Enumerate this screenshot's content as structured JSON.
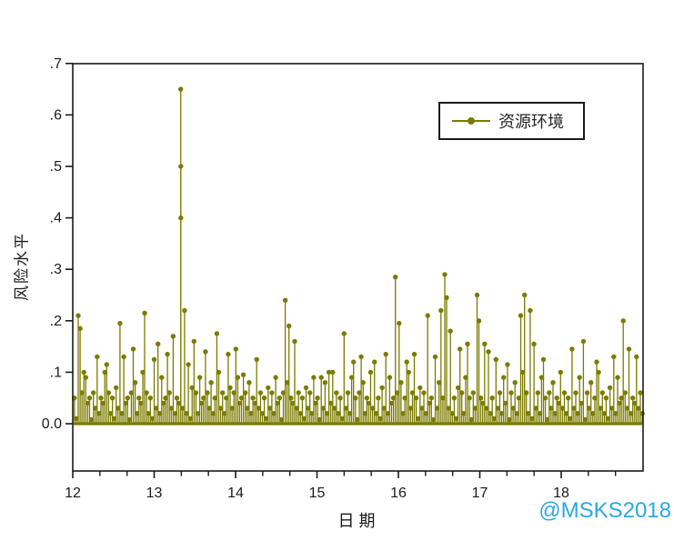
{
  "colors": {
    "series": "#7b7b00",
    "axis": "#1a1a1a",
    "watermark": "#29a9e1",
    "background": "#ffffff"
  },
  "axes_titles": {
    "y": "风险水平",
    "x": "日 期"
  },
  "legend": {
    "label": "资源环境"
  },
  "watermark": {
    "text": "@MSKS2018"
  },
  "chart_data": {
    "type": "scatter",
    "style": "stem-with-markers",
    "title": "",
    "xlabel": "日 期",
    "ylabel": "风险水平",
    "grid": false,
    "legend": {
      "entries": [
        "资源环境"
      ],
      "position": "top-right-inside"
    },
    "xlim": [
      12,
      19
    ],
    "ylim": [
      -0.09,
      0.7
    ],
    "x_ticks": [
      12,
      13,
      14,
      15,
      16,
      17,
      18
    ],
    "x_minor_interval": 0.333,
    "y_ticks": [
      0,
      0.1,
      0.2,
      0.3,
      0.4,
      0.5,
      0.6,
      0.7
    ],
    "y_tick_labels": [
      "0.0",
      ".1",
      ".2",
      ".3",
      ".4",
      ".5",
      ".6",
      ".7"
    ],
    "baseline_value": 0,
    "series": [
      {
        "name": "资源环境",
        "x_start": 12.02,
        "x_step": 0.02333,
        "values": [
          0.05,
          0.01,
          0.21,
          0.185,
          0.06,
          0.1,
          0.09,
          0.04,
          0.05,
          0.008,
          0.06,
          0.03,
          0.13,
          0.02,
          0.05,
          0.04,
          0.1,
          0.115,
          0.06,
          0.02,
          0.05,
          0.01,
          0.07,
          0.03,
          0.195,
          0.02,
          0.13,
          0.04,
          0.05,
          0.008,
          0.06,
          0.145,
          0.08,
          0.02,
          0.05,
          0.04,
          0.1,
          0.215,
          0.06,
          0.02,
          0.05,
          0.01,
          0.125,
          0.03,
          0.155,
          0.02,
          0.09,
          0.04,
          0.05,
          0.135,
          0.06,
          0.03,
          0.17,
          0.02,
          0.05,
          0.04,
          0.65,
          0.03,
          0.22,
          0.02,
          0.115,
          0.01,
          0.07,
          0.16,
          0.06,
          0.02,
          0.09,
          0.04,
          0.05,
          0.14,
          0.06,
          0.03,
          0.08,
          0.02,
          0.05,
          0.175,
          0.1,
          0.03,
          0.06,
          0.02,
          0.05,
          0.135,
          0.07,
          0.03,
          0.06,
          0.145,
          0.09,
          0.04,
          0.05,
          0.095,
          0.06,
          0.03,
          0.08,
          0.02,
          0.05,
          0.04,
          0.125,
          0.03,
          0.06,
          0.02,
          0.05,
          0.01,
          0.07,
          0.03,
          0.06,
          0.02,
          0.09,
          0.04,
          0.05,
          0.008,
          0.06,
          0.24,
          0.08,
          0.19,
          0.05,
          0.04,
          0.16,
          0.03,
          0.06,
          0.02,
          0.05,
          0.01,
          0.07,
          0.03,
          0.06,
          0.02,
          0.09,
          0.04,
          0.05,
          0.008,
          0.09,
          0.03,
          0.08,
          0.02,
          0.1,
          0.04,
          0.1,
          0.03,
          0.06,
          0.02,
          0.05,
          0.01,
          0.175,
          0.03,
          0.06,
          0.02,
          0.09,
          0.12,
          0.05,
          0.008,
          0.06,
          0.13,
          0.08,
          0.02,
          0.05,
          0.04,
          0.1,
          0.03,
          0.12,
          0.02,
          0.05,
          0.01,
          0.07,
          0.03,
          0.135,
          0.02,
          0.09,
          0.04,
          0.05,
          0.285,
          0.06,
          0.195,
          0.08,
          0.02,
          0.05,
          0.12,
          0.1,
          0.03,
          0.06,
          0.135,
          0.05,
          0.01,
          0.07,
          0.03,
          0.06,
          0.02,
          0.21,
          0.04,
          0.05,
          0.008,
          0.13,
          0.03,
          0.08,
          0.22,
          0.05,
          0.29,
          0.245,
          0.03,
          0.18,
          0.02,
          0.05,
          0.01,
          0.07,
          0.145,
          0.06,
          0.02,
          0.09,
          0.155,
          0.05,
          0.008,
          0.06,
          0.03,
          0.25,
          0.2,
          0.05,
          0.04,
          0.155,
          0.03,
          0.14,
          0.02,
          0.05,
          0.01,
          0.125,
          0.03,
          0.06,
          0.02,
          0.09,
          0.04,
          0.115,
          0.008,
          0.06,
          0.03,
          0.08,
          0.02,
          0.05,
          0.21,
          0.1,
          0.25,
          0.06,
          0.02,
          0.22,
          0.01,
          0.155,
          0.03,
          0.06,
          0.02,
          0.09,
          0.125,
          0.05,
          0.008,
          0.06,
          0.03,
          0.08,
          0.02,
          0.05,
          0.04,
          0.1,
          0.03,
          0.06,
          0.02,
          0.05,
          0.01,
          0.145,
          0.03,
          0.06,
          0.02,
          0.09,
          0.04,
          0.16,
          0.008,
          0.06,
          0.03,
          0.08,
          0.02,
          0.05,
          0.12,
          0.1,
          0.03,
          0.06,
          0.02,
          0.05,
          0.01,
          0.07,
          0.03,
          0.13,
          0.02,
          0.09,
          0.04,
          0.05,
          0.2,
          0.06,
          0.03,
          0.145,
          0.02,
          0.05,
          0.04,
          0.13,
          0.03,
          0.06,
          0.02
        ],
        "extra_points": [
          [
            13.327,
            0.5
          ],
          [
            13.327,
            0.4
          ]
        ],
        "peak_point": [
          13.327,
          0.65
        ]
      }
    ]
  }
}
